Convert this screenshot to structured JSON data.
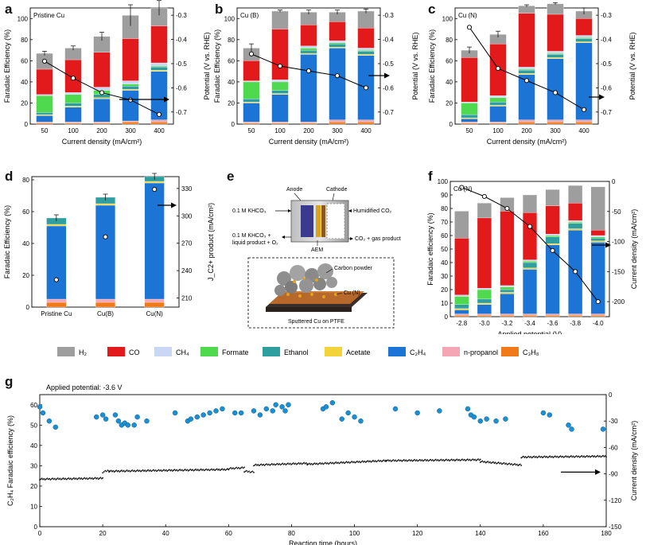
{
  "colors": {
    "H2": "#9e9e9e",
    "CO": "#e31a1c",
    "CH4": "#c9d7f5",
    "Formate": "#4fd94f",
    "Ethanol": "#2f9e9e",
    "Acetate": "#f2d33a",
    "C2H4": "#1c74d4",
    "n-propanol": "#f4a6b4",
    "C3H8": "#f07a1a",
    "point": "#1a8fd1"
  },
  "legend": {
    "items": [
      {
        "key": "H2",
        "label": "H₂"
      },
      {
        "key": "CO",
        "label": "CO"
      },
      {
        "key": "CH4",
        "label": "CH₄"
      },
      {
        "key": "Formate",
        "label": "Formate"
      },
      {
        "key": "Ethanol",
        "label": "Ethanol"
      },
      {
        "key": "Acetate",
        "label": "Acetate"
      },
      {
        "key": "C2H4",
        "label": "C₂H₄"
      },
      {
        "key": "n-propanol",
        "label": "n-propanol"
      },
      {
        "key": "C3H8",
        "label": "C₃H₈"
      }
    ]
  },
  "panel_e": {
    "letter": "e",
    "anode": "Anode",
    "cathode": "Cathode",
    "left_top": "0.1 M KHCO₃",
    "right_top": "Humidified CO₂",
    "left_bottom_1": "0.1 M KHCO₃ +",
    "left_bottom_2": "liquid product + O₂",
    "right_bottom": "CO₂ + gas product",
    "aem": "AEM",
    "carbon": "Carbon powder",
    "cu": "Cu (N)",
    "sputtered": "Sputtered Cu on PTFE"
  },
  "chart_data": [
    {
      "id": "a",
      "type": "bar",
      "letter": "a",
      "title": "Pristine Cu",
      "xlabel": "Current density (mA/cm²)",
      "ylabel": "Faradaic Efficiency (%)",
      "y2label": "Potential (V vs. RHE)",
      "categories": [
        "50",
        "100",
        "200",
        "300",
        "400"
      ],
      "ylim": [
        0,
        110
      ],
      "yticks": [
        0,
        20,
        40,
        60,
        80,
        100
      ],
      "y2lim": [
        -0.75,
        -0.27
      ],
      "y2ticks": [
        -0.3,
        -0.4,
        -0.5,
        -0.6,
        -0.7
      ],
      "stacks": [
        {
          "C3H8": 1,
          "n-propanol": 1,
          "C2H4": 6,
          "Acetate": 1,
          "Ethanol": 2,
          "Formate": 16,
          "CH4": 1,
          "CO": 24,
          "H2": 15
        },
        {
          "C3H8": 1,
          "n-propanol": 1,
          "C2H4": 14,
          "Acetate": 1,
          "Ethanol": 3,
          "Formate": 8,
          "CH4": 2,
          "CO": 31,
          "H2": 11
        },
        {
          "C3H8": 1,
          "n-propanol": 1,
          "C2H4": 22,
          "Acetate": 1,
          "Ethanol": 3,
          "Formate": 4,
          "CH4": 3,
          "CO": 33,
          "H2": 15
        },
        {
          "C3H8": 2,
          "n-propanol": 1,
          "C2H4": 29,
          "Acetate": 1,
          "Ethanol": 3,
          "Formate": 2,
          "CH4": 3,
          "CO": 40,
          "H2": 22
        },
        {
          "C3H8": 2,
          "n-propanol": 2,
          "C2H4": 46,
          "Acetate": 1,
          "Ethanol": 3,
          "Formate": 1,
          "CH4": 3,
          "CO": 35,
          "H2": 17
        }
      ],
      "errors": [
        2,
        2,
        4,
        10,
        7
      ],
      "line": {
        "name": "Potential",
        "values": [
          -0.49,
          -0.56,
          -0.62,
          -0.65,
          -0.71
        ]
      },
      "arrow_dir": "right"
    },
    {
      "id": "b",
      "type": "bar",
      "letter": "b",
      "title": "Cu (B)",
      "xlabel": "Current density (mA/cm²)",
      "ylabel": "Faradaic Efficiency (%)",
      "y2label": "Potential (V vs. RHE)",
      "categories": [
        "50",
        "100",
        "200",
        "300",
        "400"
      ],
      "ylim": [
        0,
        110
      ],
      "yticks": [
        0,
        20,
        40,
        60,
        80,
        100
      ],
      "y2lim": [
        -0.75,
        -0.27
      ],
      "y2ticks": [
        -0.3,
        -0.4,
        -0.5,
        -0.6,
        -0.7
      ],
      "stacks": [
        {
          "C3H8": 1,
          "n-propanol": 1,
          "C2H4": 18,
          "Acetate": 1,
          "Ethanol": 3,
          "Formate": 16,
          "CH4": 1,
          "CO": 19,
          "H2": 12
        },
        {
          "C3H8": 1,
          "n-propanol": 1,
          "C2H4": 26,
          "Acetate": 1,
          "Ethanol": 3,
          "Formate": 8,
          "CH4": 2,
          "CO": 48,
          "H2": 17
        },
        {
          "C3H8": 1,
          "n-propanol": 1,
          "C2H4": 64,
          "Acetate": 1,
          "Ethanol": 3,
          "Formate": 2,
          "CH4": 2,
          "CO": 20,
          "H2": 12
        },
        {
          "C3H8": 2,
          "n-propanol": 2,
          "C2H4": 68,
          "Acetate": 1,
          "Ethanol": 3,
          "Formate": 1,
          "CH4": 2,
          "CO": 18,
          "H2": 9
        },
        {
          "C3H8": 2,
          "n-propanol": 2,
          "C2H4": 61,
          "Acetate": 1,
          "Ethanol": 3,
          "Formate": 1,
          "CH4": 2,
          "CO": 19,
          "H2": 16
        }
      ],
      "errors": [
        4,
        1,
        2,
        2,
        2
      ],
      "line": {
        "name": "Potential",
        "values": [
          -0.46,
          -0.51,
          -0.53,
          -0.55,
          -0.6
        ]
      },
      "arrow_dir": "right"
    },
    {
      "id": "c",
      "type": "bar",
      "letter": "c",
      "title": "Cu (N)",
      "xlabel": "Current density (mA/cm²)",
      "ylabel": "Faradaic Efficiency (%)",
      "y2label": "Potential (V vs. RHE)",
      "categories": [
        "50",
        "100",
        "200",
        "300",
        "400"
      ],
      "ylim": [
        0,
        110
      ],
      "yticks": [
        0,
        20,
        40,
        60,
        80,
        100
      ],
      "y2lim": [
        -0.75,
        -0.27
      ],
      "y2ticks": [
        -0.3,
        -0.4,
        -0.5,
        -0.6,
        -0.7
      ],
      "stacks": [
        {
          "C3H8": 1,
          "n-propanol": 1,
          "C2H4": 3,
          "Acetate": 1,
          "Ethanol": 3,
          "Formate": 11,
          "CH4": 1,
          "CO": 42,
          "H2": 7
        },
        {
          "C3H8": 1,
          "n-propanol": 1,
          "C2H4": 15,
          "Acetate": 1,
          "Ethanol": 3,
          "Formate": 4,
          "CH4": 2,
          "CO": 49,
          "H2": 9
        },
        {
          "C3H8": 2,
          "n-propanol": 2,
          "C2H4": 43,
          "Acetate": 1,
          "Ethanol": 3,
          "Formate": 1,
          "CH4": 2,
          "CO": 51,
          "H2": 7
        },
        {
          "C3H8": 2,
          "n-propanol": 2,
          "C2H4": 58,
          "Acetate": 1,
          "Ethanol": 3,
          "Formate": 1,
          "CH4": 2,
          "CO": 35,
          "H2": 10
        },
        {
          "C3H8": 2,
          "n-propanol": 2,
          "C2H4": 73,
          "Acetate": 1,
          "Ethanol": 3,
          "Formate": 1,
          "CH4": 2,
          "CO": 16,
          "H2": 7
        }
      ],
      "errors": [
        3,
        3,
        1,
        1,
        3
      ],
      "line": {
        "name": "Potential",
        "values": [
          -0.35,
          -0.52,
          -0.57,
          -0.62,
          -0.69
        ]
      },
      "arrow_dir": "right"
    },
    {
      "id": "d",
      "type": "bar",
      "letter": "d",
      "title": "",
      "xlabel": "",
      "ylabel": "Faradaic Efficiency (%)",
      "y2label": "J_C2+ product (mA/cm²)",
      "categories": [
        "Pristine Cu",
        "Cu(B)",
        "Cu(N)"
      ],
      "ylim": [
        0,
        82
      ],
      "yticks": [
        0,
        20,
        40,
        60,
        80
      ],
      "y2lim": [
        200,
        343
      ],
      "y2ticks": [
        210,
        240,
        270,
        300,
        330
      ],
      "stacks": [
        {
          "C3H8": 3,
          "n-propanol": 2,
          "C2H4": 46,
          "Acetate": 1,
          "Ethanol": 4
        },
        {
          "C3H8": 3,
          "n-propanol": 2,
          "C2H4": 59,
          "Acetate": 1,
          "Ethanol": 4
        },
        {
          "C3H8": 3,
          "n-propanol": 2,
          "C2H4": 73,
          "Acetate": 1,
          "Ethanol": 3
        }
      ],
      "errors": [
        2,
        2,
        2
      ],
      "line": {
        "name": "J C2+",
        "values": [
          230,
          277,
          329
        ],
        "connected": false
      },
      "arrow_dir": "right"
    },
    {
      "id": "f",
      "type": "bar",
      "letter": "f",
      "title": "Cu (N)",
      "xlabel": "Applied potential (V)",
      "ylabel": "Faradaic efficiency (%)",
      "y2label": "Current density (mA/cm²)",
      "categories": [
        "-2.8",
        "-3.0",
        "-3.2",
        "-3.4",
        "-3.6",
        "-3.8",
        "-4.0"
      ],
      "ylim": [
        0,
        100
      ],
      "yticks": [
        0,
        10,
        20,
        30,
        40,
        50,
        60,
        70,
        80,
        90,
        100
      ],
      "y2lim": [
        -225,
        0
      ],
      "y2ticks": [
        0,
        -50,
        -100,
        -150,
        -200
      ],
      "stacks": [
        {
          "C3H8": 1,
          "n-propanol": 1,
          "C2H4": 3,
          "Acetate": 1,
          "Ethanol": 3,
          "Formate": 6,
          "CH4": 1,
          "CO": 42,
          "H2": 20
        },
        {
          "C3H8": 1,
          "n-propanol": 1,
          "C2H4": 7,
          "Acetate": 1,
          "Ethanol": 3,
          "Formate": 7,
          "CH4": 1,
          "CO": 52,
          "H2": 11
        },
        {
          "C3H8": 1,
          "n-propanol": 1,
          "C2H4": 15,
          "Acetate": 1,
          "Ethanol": 2,
          "Formate": 2,
          "CH4": 1,
          "CO": 55,
          "H2": 10
        },
        {
          "C3H8": 1,
          "n-propanol": 1,
          "C2H4": 33,
          "Acetate": 1,
          "Ethanol": 4,
          "Formate": 1,
          "CH4": 1,
          "CO": 35,
          "H2": 13
        },
        {
          "C3H8": 1,
          "n-propanol": 1,
          "C2H4": 51,
          "Acetate": 1,
          "Ethanol": 5,
          "Formate": 1,
          "CH4": 1,
          "CO": 21,
          "H2": 12
        },
        {
          "C3H8": 1,
          "n-propanol": 1,
          "C2H4": 62,
          "Acetate": 1,
          "Ethanol": 4,
          "Formate": 1,
          "CH4": 1,
          "CO": 13,
          "H2": 13
        },
        {
          "C3H8": 1,
          "n-propanol": 1,
          "C2H4": 53,
          "Acetate": 1,
          "Ethanol": 2,
          "Formate": 1,
          "CH4": 1,
          "CO": 4,
          "H2": 32
        }
      ],
      "errors": [
        0,
        0,
        0,
        0,
        0,
        0,
        0
      ],
      "line": {
        "name": "Current density",
        "values": [
          -10,
          -25,
          -45,
          -75,
          -115,
          -150,
          -200
        ]
      },
      "arrow_dir": "right"
    },
    {
      "id": "g",
      "type": "scatter",
      "letter": "g",
      "title": "Applied potential: -3.6 V",
      "xlabel": "Reaction time (hours)",
      "ylabel": "C₂H₄ Faradaic efficiency (%)",
      "y2label": "Current density (mA/cm²)",
      "xlim": [
        0,
        180
      ],
      "xticks": [
        0,
        20,
        40,
        60,
        80,
        100,
        120,
        140,
        160,
        180
      ],
      "ylim": [
        0,
        65
      ],
      "yticks": [
        0,
        10,
        20,
        30,
        40,
        50,
        60
      ],
      "y2lim": [
        -150,
        0
      ],
      "y2ticks": [
        0,
        -30,
        -60,
        -90,
        -120,
        -150
      ],
      "fe_points": [
        [
          0,
          59
        ],
        [
          1,
          56
        ],
        [
          3,
          52
        ],
        [
          5,
          49
        ],
        [
          18,
          54
        ],
        [
          20,
          55
        ],
        [
          21,
          53
        ],
        [
          24,
          55
        ],
        [
          25,
          52
        ],
        [
          26,
          50
        ],
        [
          27,
          51
        ],
        [
          28,
          50
        ],
        [
          30,
          50
        ],
        [
          31,
          54
        ],
        [
          34,
          52
        ],
        [
          43,
          56
        ],
        [
          47,
          52
        ],
        [
          48,
          53
        ],
        [
          50,
          54
        ],
        [
          52,
          55
        ],
        [
          54,
          56
        ],
        [
          56,
          57
        ],
        [
          58,
          58
        ],
        [
          62,
          56
        ],
        [
          64,
          56
        ],
        [
          68,
          57
        ],
        [
          70,
          55
        ],
        [
          72,
          58
        ],
        [
          74,
          57
        ],
        [
          75,
          60
        ],
        [
          77,
          59
        ],
        [
          78,
          57
        ],
        [
          79,
          60
        ],
        [
          90,
          58
        ],
        [
          91,
          59
        ],
        [
          93,
          61
        ],
        [
          96,
          53
        ],
        [
          98,
          56
        ],
        [
          100,
          54
        ],
        [
          102,
          52
        ],
        [
          113,
          58
        ],
        [
          120,
          56
        ],
        [
          127,
          57
        ],
        [
          136,
          58
        ],
        [
          137,
          55
        ],
        [
          138,
          54
        ],
        [
          140,
          52
        ],
        [
          142,
          53
        ],
        [
          145,
          52
        ],
        [
          148,
          53
        ],
        [
          160,
          56
        ],
        [
          162,
          55
        ],
        [
          168,
          50
        ],
        [
          169,
          48
        ],
        [
          179,
          48
        ]
      ],
      "cd_segments": [
        {
          "x": [
            0,
            20
          ],
          "y": [
            -96,
            -95
          ]
        },
        {
          "x": [
            20,
            22
          ],
          "y": [
            -88,
            -86
          ]
        },
        {
          "x": [
            22,
            60
          ],
          "y": [
            -87,
            -85
          ]
        },
        {
          "x": [
            60,
            65
          ],
          "y": [
            -84,
            -83
          ]
        },
        {
          "x": [
            65,
            68
          ],
          "y": [
            -87,
            -88
          ]
        },
        {
          "x": [
            68,
            85
          ],
          "y": [
            -80,
            -78
          ]
        },
        {
          "x": [
            85,
            110
          ],
          "y": [
            -79,
            -75
          ]
        },
        {
          "x": [
            110,
            140
          ],
          "y": [
            -75,
            -74
          ]
        },
        {
          "x": [
            140,
            153
          ],
          "y": [
            -76,
            -80
          ]
        },
        {
          "x": [
            153,
            180
          ],
          "y": [
            -71,
            -70
          ]
        }
      ],
      "arrow_dir": "right"
    }
  ]
}
